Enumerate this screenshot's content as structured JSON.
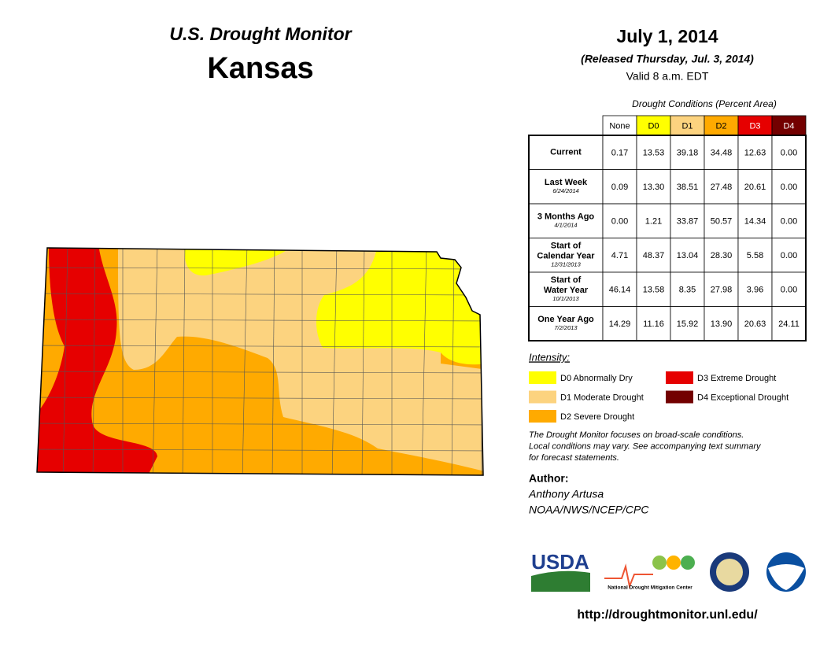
{
  "header": {
    "title": "U.S. Drought Monitor",
    "state": "Kansas",
    "date": "July 1, 2014",
    "released": "(Released Thursday, Jul. 3, 2014)",
    "valid": "Valid 8 a.m. EDT"
  },
  "table": {
    "caption": "Drought Conditions (Percent Area)",
    "columns": [
      {
        "label": "None",
        "color": "#ffffff",
        "text": "#000000"
      },
      {
        "label": "D0",
        "color": "#ffff00",
        "text": "#000000"
      },
      {
        "label": "D1",
        "color": "#fcd37f",
        "text": "#000000"
      },
      {
        "label": "D2",
        "color": "#ffaa00",
        "text": "#000000"
      },
      {
        "label": "D3",
        "color": "#e60000",
        "text": "#ffffff"
      },
      {
        "label": "D4",
        "color": "#730000",
        "text": "#ffffff"
      }
    ],
    "rows": [
      {
        "label": [
          "Current"
        ],
        "values": [
          "0.17",
          "13.53",
          "39.18",
          "34.48",
          "12.63",
          "0.00"
        ]
      },
      {
        "label": [
          "Last Week"
        ],
        "date": "6/24/2014",
        "values": [
          "0.09",
          "13.30",
          "38.51",
          "27.48",
          "20.61",
          "0.00"
        ]
      },
      {
        "label": [
          "3 Months Ago"
        ],
        "date": "4/1/2014",
        "values": [
          "0.00",
          "1.21",
          "33.87",
          "50.57",
          "14.34",
          "0.00"
        ]
      },
      {
        "label": [
          "Start of",
          "Calendar Year"
        ],
        "date": "12/31/2013",
        "values": [
          "4.71",
          "48.37",
          "13.04",
          "28.30",
          "5.58",
          "0.00"
        ]
      },
      {
        "label": [
          "Start of",
          "Water Year"
        ],
        "date": "10/1/2013",
        "values": [
          "46.14",
          "13.58",
          "8.35",
          "27.98",
          "3.96",
          "0.00"
        ]
      },
      {
        "label": [
          "One Year Ago"
        ],
        "date": "7/2/2013",
        "values": [
          "14.29",
          "11.16",
          "15.92",
          "13.90",
          "20.63",
          "24.11"
        ]
      }
    ]
  },
  "legend": {
    "title": "Intensity:",
    "items": [
      {
        "label": "D0 Abnormally Dry",
        "color": "#ffff00"
      },
      {
        "label": "D3 Extreme Drought",
        "color": "#e60000"
      },
      {
        "label": "D1 Moderate Drought",
        "color": "#fcd37f"
      },
      {
        "label": "D4 Exceptional Drought",
        "color": "#730000"
      },
      {
        "label": "D2 Severe Drought",
        "color": "#ffaa00"
      }
    ]
  },
  "note": [
    "The Drought Monitor focuses on broad-scale conditions.",
    "Local conditions may vary. See accompanying text summary",
    "for forecast statements."
  ],
  "author": {
    "heading": "Author:",
    "name": "Anthony Artusa",
    "org": "NOAA/NWS/NCEP/CPC"
  },
  "logos": {
    "usda": "USDA",
    "ndmc": "National Drought Mitigation Center"
  },
  "url": "http://droughtmonitor.unl.edu/"
}
